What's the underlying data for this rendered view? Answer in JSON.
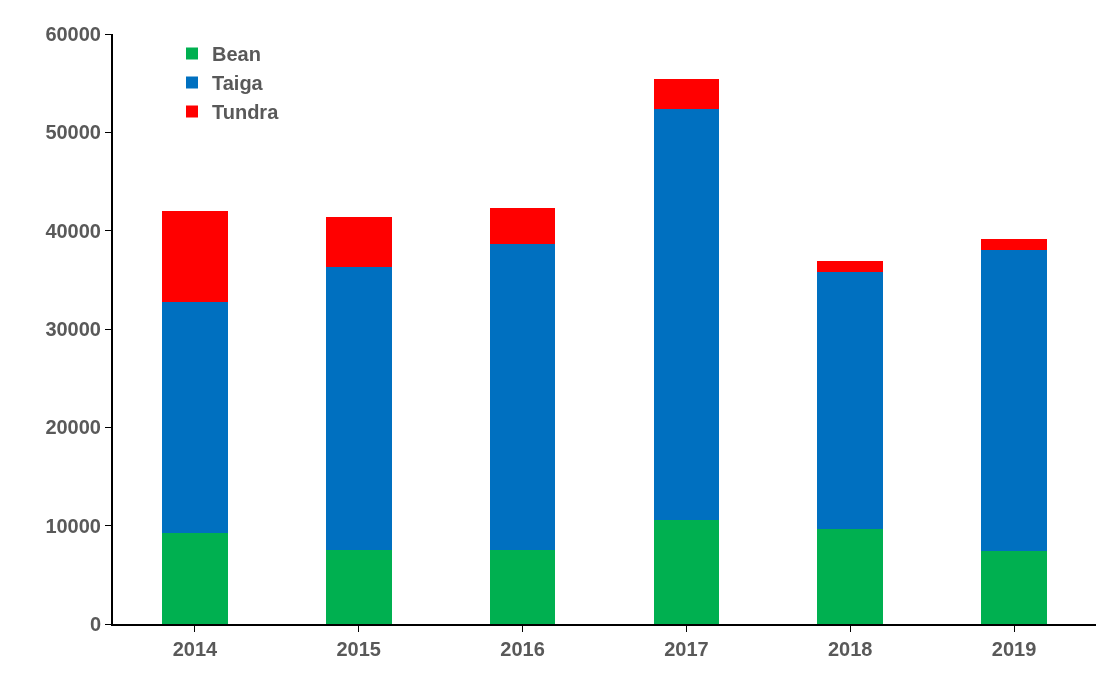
{
  "chart_data": {
    "type": "bar",
    "stacked": true,
    "categories": [
      "2014",
      "2015",
      "2016",
      "2017",
      "2018",
      "2019"
    ],
    "series": [
      {
        "name": "Bean",
        "color": "#00b050",
        "values": [
          9300,
          7500,
          7500,
          10600,
          9700,
          7400
        ]
      },
      {
        "name": "Taiga",
        "color": "#0070c0",
        "values": [
          23400,
          28800,
          31100,
          41800,
          26100,
          30600
        ]
      },
      {
        "name": "Tundra",
        "color": "#ff0000",
        "values": [
          9300,
          5100,
          3700,
          3000,
          1100,
          1200
        ]
      }
    ],
    "ylim": [
      0,
      60000
    ],
    "yticks": [
      0,
      10000,
      20000,
      30000,
      40000,
      50000,
      60000
    ],
    "legend": "top left"
  }
}
